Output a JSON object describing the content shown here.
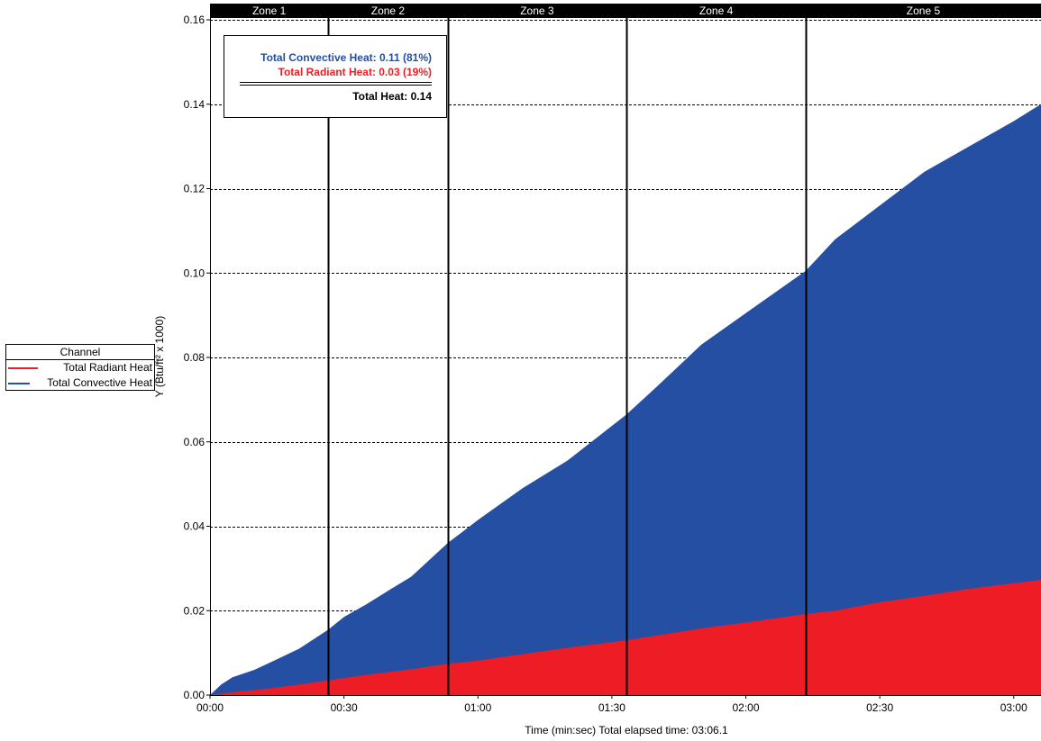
{
  "chart_data": {
    "type": "area",
    "stacked": true,
    "xlabel": "Time (min:sec) Total elapsed time: 03:06.1",
    "ylabel": "Y (Btu/ft² x 1000)",
    "x_units": "seconds",
    "xlim": [
      0,
      186.1
    ],
    "ylim": [
      0,
      0.16
    ],
    "x_ticks": [
      {
        "value": 0,
        "label": "00:00"
      },
      {
        "value": 30,
        "label": "00:30"
      },
      {
        "value": 60,
        "label": "01:00"
      },
      {
        "value": 90,
        "label": "01:30"
      },
      {
        "value": 120,
        "label": "02:00"
      },
      {
        "value": 150,
        "label": "02:30"
      },
      {
        "value": 180,
        "label": "03:00"
      }
    ],
    "y_ticks": [
      "0.00",
      "0.02",
      "0.04",
      "0.06",
      "0.08",
      "0.10",
      "0.12",
      "0.14",
      "0.16"
    ],
    "grid": "horizontal dashed",
    "zones": [
      {
        "label": "Zone 1",
        "start": 0,
        "end": 26.5
      },
      {
        "label": "Zone 2",
        "start": 26.5,
        "end": 53.2
      },
      {
        "label": "Zone 3",
        "start": 53.2,
        "end": 93.3
      },
      {
        "label": "Zone 4",
        "start": 93.3,
        "end": 133.4
      },
      {
        "label": "Zone 5",
        "start": 133.4,
        "end": 186.1
      }
    ],
    "series": [
      {
        "name": "Total Radiant Heat",
        "color": "#ee1d25",
        "points": [
          [
            0,
            0
          ],
          [
            5,
            0.0007
          ],
          [
            10,
            0.0012
          ],
          [
            15,
            0.0018
          ],
          [
            20,
            0.0025
          ],
          [
            26.5,
            0.0035
          ],
          [
            35,
            0.0048
          ],
          [
            45,
            0.0061
          ],
          [
            53.2,
            0.0074
          ],
          [
            60,
            0.0082
          ],
          [
            70,
            0.0097
          ],
          [
            80,
            0.0112
          ],
          [
            93.3,
            0.013
          ],
          [
            100,
            0.0141
          ],
          [
            110,
            0.0158
          ],
          [
            120,
            0.0172
          ],
          [
            133.4,
            0.0192
          ],
          [
            140,
            0.02
          ],
          [
            150,
            0.022
          ],
          [
            160,
            0.0235
          ],
          [
            170,
            0.0252
          ],
          [
            180,
            0.0265
          ],
          [
            186.1,
            0.0273
          ]
        ]
      },
      {
        "name": "Total Convective Heat",
        "color": "#244fa3",
        "stacked_total_points": [
          [
            0,
            0
          ],
          [
            2.5,
            0.0025
          ],
          [
            5,
            0.0042
          ],
          [
            10,
            0.006
          ],
          [
            15,
            0.0085
          ],
          [
            20,
            0.011
          ],
          [
            26.5,
            0.0155
          ],
          [
            30,
            0.0185
          ],
          [
            35,
            0.0215
          ],
          [
            40,
            0.0248
          ],
          [
            45,
            0.028
          ],
          [
            53.2,
            0.036
          ],
          [
            60,
            0.0415
          ],
          [
            70,
            0.049
          ],
          [
            80,
            0.0555
          ],
          [
            93.3,
            0.0665
          ],
          [
            100,
            0.073
          ],
          [
            110,
            0.083
          ],
          [
            120,
            0.0905
          ],
          [
            133.4,
            0.1005
          ],
          [
            140,
            0.108
          ],
          [
            150,
            0.116
          ],
          [
            160,
            0.124
          ],
          [
            170,
            0.13
          ],
          [
            180,
            0.136
          ],
          [
            186.1,
            0.14
          ]
        ]
      }
    ],
    "legend": {
      "title": "Channel",
      "placement": "left",
      "entries": [
        {
          "label": "Total Radiant Heat",
          "color": "#ee1d25"
        },
        {
          "label": "Total Convective Heat",
          "color": "#244fa3"
        }
      ]
    },
    "summary": {
      "convective": "Total Convective Heat: 0.11 (81%)",
      "radiant": "Total Radiant Heat: 0.03 (19%)",
      "total": "Total Heat: 0.14",
      "convective_color": "#244fa3",
      "radiant_color": "#ee1d25"
    }
  }
}
